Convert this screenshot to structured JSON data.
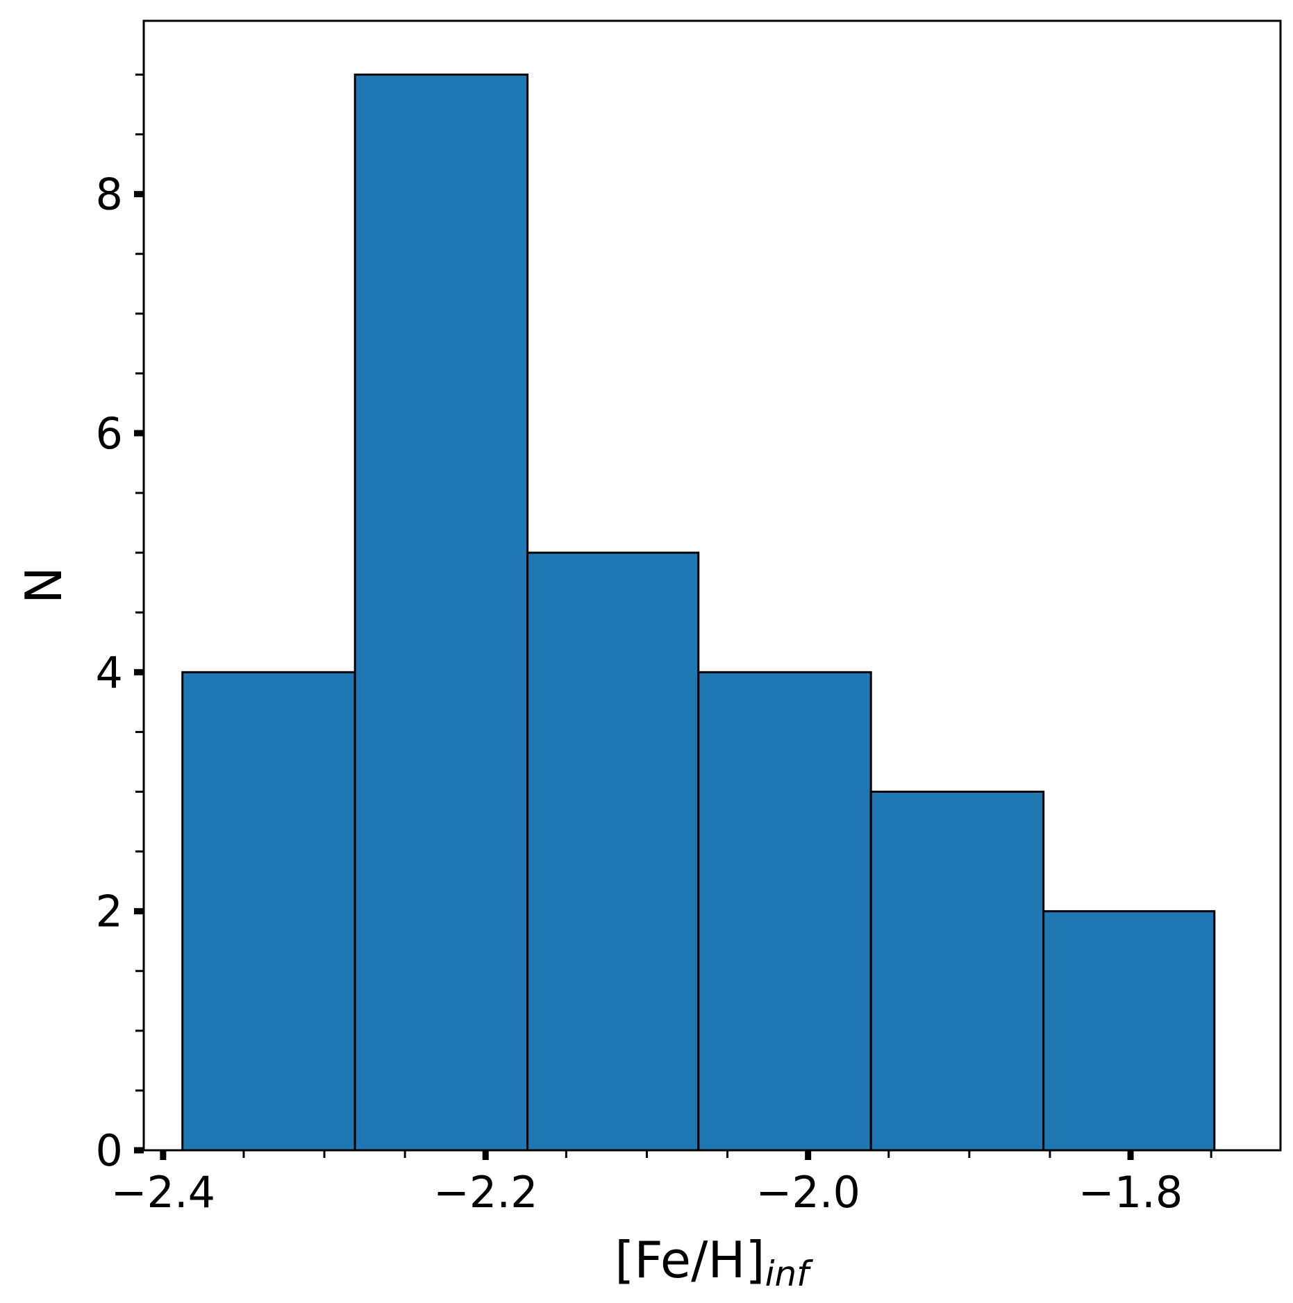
{
  "chart_data": {
    "type": "bar",
    "bins": [
      {
        "x0": -2.388,
        "x1": -2.281,
        "count": 4
      },
      {
        "x0": -2.281,
        "x1": -2.174,
        "count": 9
      },
      {
        "x0": -2.174,
        "x1": -2.068,
        "count": 5
      },
      {
        "x0": -2.068,
        "x1": -1.961,
        "count": 4
      },
      {
        "x0": -1.961,
        "x1": -1.854,
        "count": 3
      },
      {
        "x0": -1.854,
        "x1": -1.748,
        "count": 2
      }
    ],
    "xlim": [
      -2.412,
      -1.707
    ],
    "ylim": [
      0,
      9.45
    ],
    "xticks": [
      -2.4,
      -2.2,
      -2.0,
      -1.8
    ],
    "xtick_labels": [
      "−2.4",
      "−2.2",
      "−2.0",
      "−1.8"
    ],
    "xminor_step": 0.05,
    "yticks": [
      0,
      2,
      4,
      6,
      8
    ],
    "ytick_labels": [
      "0",
      "2",
      "4",
      "6",
      "8"
    ],
    "yminor_step": 0.5,
    "xlabel_main": "[Fe/H]",
    "xlabel_sub": "inf",
    "ylabel": "N",
    "bar_color": "#1f77b4",
    "edge_color": "#000000",
    "grid": false,
    "legend": false
  }
}
